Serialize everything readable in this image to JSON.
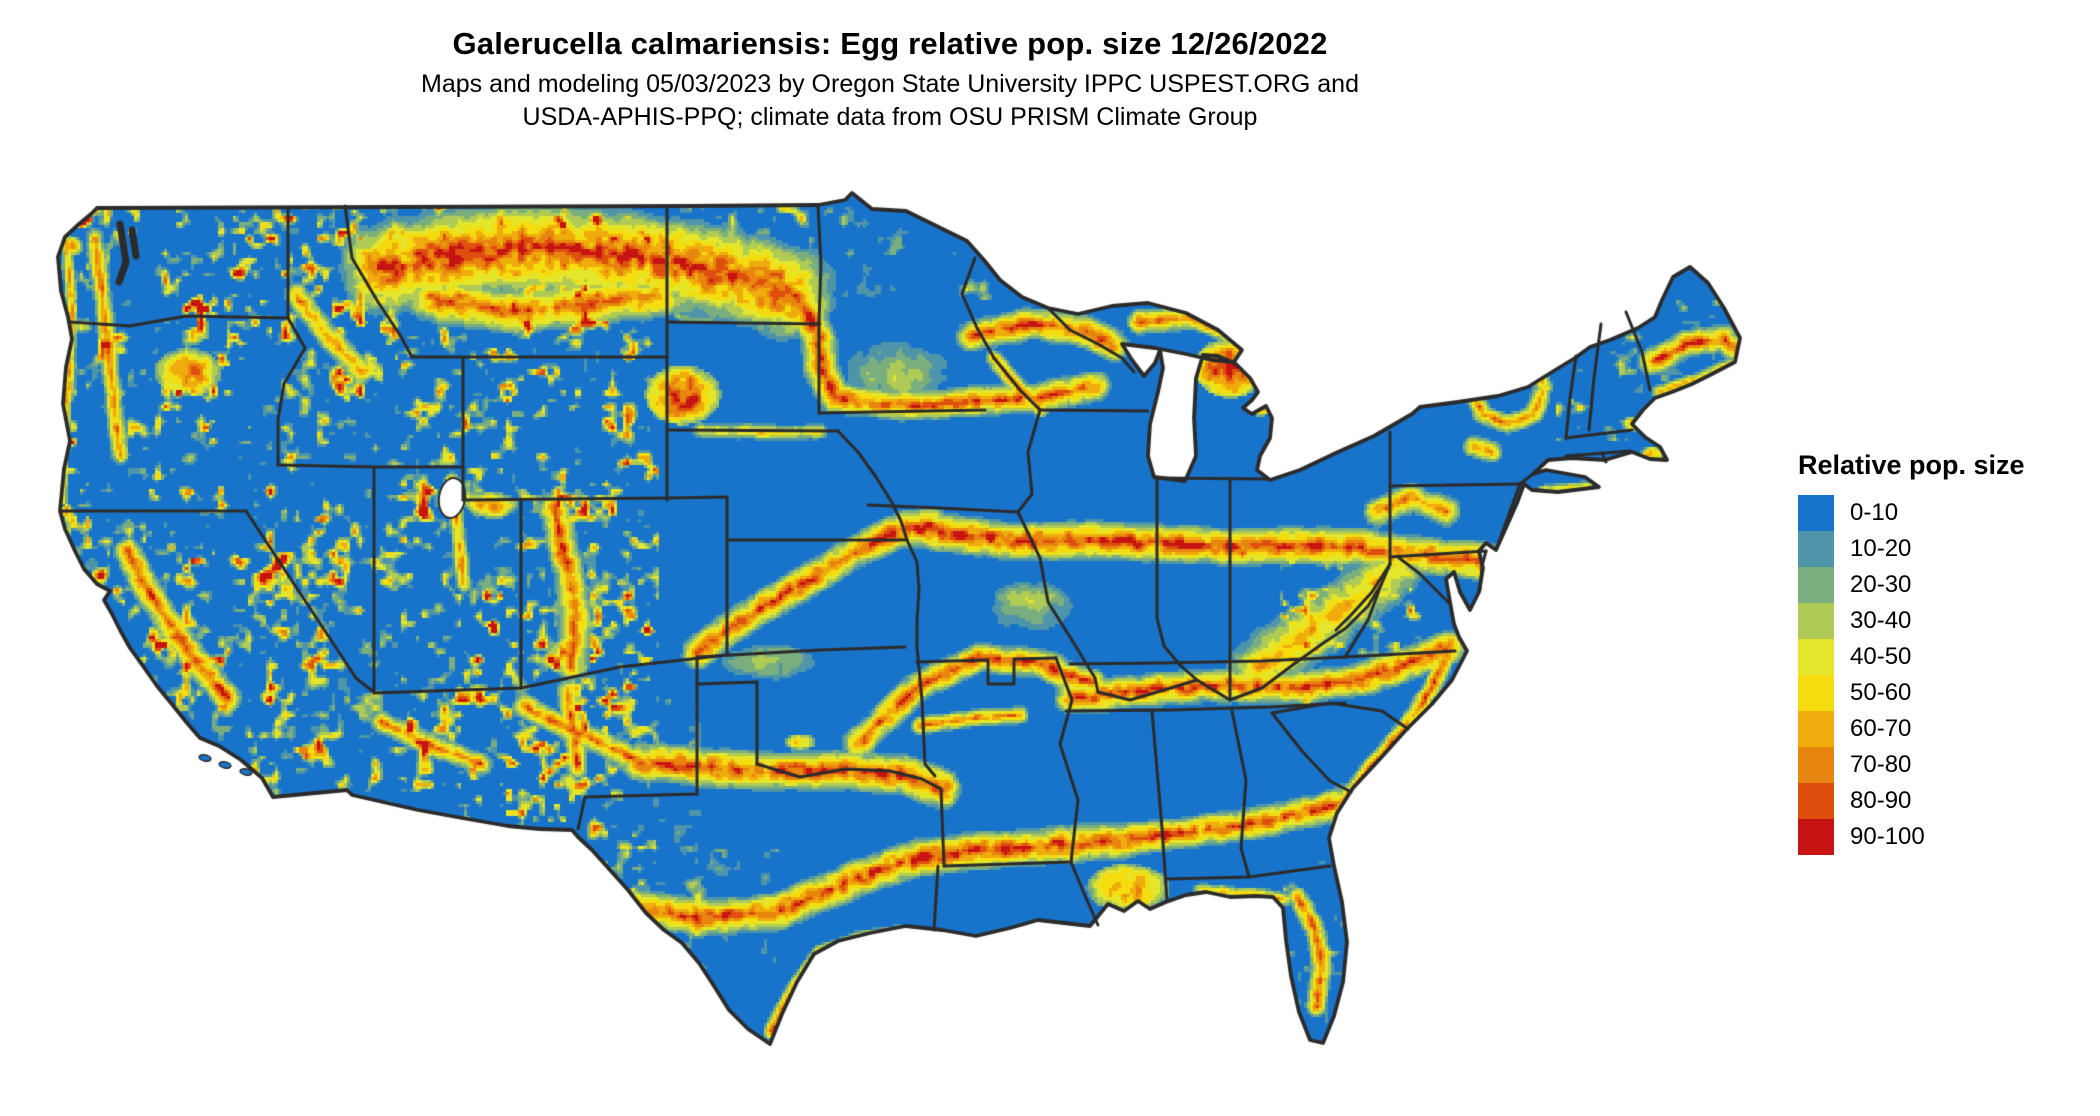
{
  "header": {
    "title": "Galerucella calmariensis: Egg relative pop. size 12/26/2022",
    "subtitle_line1": "Maps and modeling 05/03/2023 by Oregon State University IPPC USPEST.ORG and",
    "subtitle_line2": "USDA-APHIS-PPQ; climate data from OSU PRISM Climate Group"
  },
  "legend": {
    "title": "Relative pop. size",
    "bins": [
      {
        "label": "0-10",
        "color": "#1874CB"
      },
      {
        "label": "10-20",
        "color": "#4E95A9"
      },
      {
        "label": "20-30",
        "color": "#7BAE7E"
      },
      {
        "label": "30-40",
        "color": "#AFCB55"
      },
      {
        "label": "40-50",
        "color": "#E3E62B"
      },
      {
        "label": "50-60",
        "color": "#F4DC0F"
      },
      {
        "label": "60-70",
        "color": "#F0AB0C"
      },
      {
        "label": "70-80",
        "color": "#E8850E"
      },
      {
        "label": "80-90",
        "color": "#DE4F0E"
      },
      {
        "label": "90-100",
        "color": "#C71412"
      }
    ]
  },
  "map": {
    "background_color": "#FFFFFF",
    "water_color": "#FFFFFF",
    "base_color": "#1874CB",
    "border_color": "#2B2B2B"
  }
}
